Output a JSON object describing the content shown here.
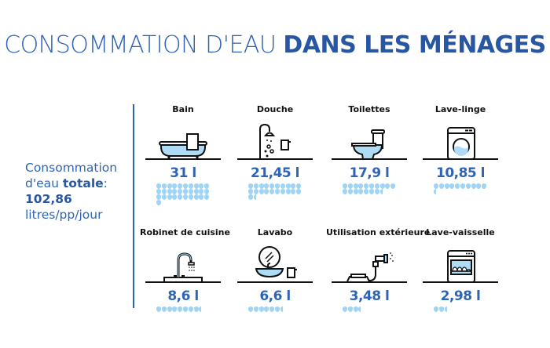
{
  "title": {
    "light": "CONSOMMATION D'EAU ",
    "bold": "DANS LES MÉNAGES"
  },
  "total": {
    "line1": "Consommation",
    "line2a": "d'eau ",
    "line2b": "totale",
    "line2c": ":",
    "value": "102,86",
    "unit": "litres/pp/jour"
  },
  "colors": {
    "accent": "#2f64b5",
    "drop": "#9fd4f5",
    "text": "#111111"
  },
  "items": [
    {
      "label": "Bain",
      "value": "31 l",
      "litres": 31,
      "icon": "bathtub-icon"
    },
    {
      "label": "Douche",
      "value": "21,45 l",
      "litres": 21.45,
      "icon": "shower-icon"
    },
    {
      "label": "Toilettes",
      "value": "17,9 l",
      "litres": 17.9,
      "icon": "toilet-icon"
    },
    {
      "label": "Lave-linge",
      "value": "10,85 l",
      "litres": 10.85,
      "icon": "washing-machine-icon"
    },
    {
      "label": "Robinet de cuisine",
      "value": "8,6 l",
      "litres": 8.6,
      "icon": "kitchen-faucet-icon"
    },
    {
      "label": "Lavabo",
      "value": "6,6 l",
      "litres": 6.6,
      "icon": "washbasin-icon"
    },
    {
      "label": "Utilisation extérieure",
      "value": "3,48 l",
      "litres": 3.48,
      "icon": "garden-hose-icon"
    },
    {
      "label": "Lave-vaisselle",
      "value": "2,98 l",
      "litres": 2.98,
      "icon": "dishwasher-icon"
    }
  ],
  "chart_data": {
    "type": "bar",
    "title": "CONSOMMATION D'EAU DANS LES MÉNAGES",
    "categories": [
      "Bain",
      "Douche",
      "Toilettes",
      "Lave-linge",
      "Robinet de cuisine",
      "Lavabo",
      "Utilisation extérieure",
      "Lave-vaisselle"
    ],
    "values": [
      31,
      21.45,
      17.9,
      10.85,
      8.6,
      6.6,
      3.48,
      2.98
    ],
    "unit": "litres/pp/jour",
    "total": 102.86,
    "xlabel": "",
    "ylabel": "litres",
    "annotation": "Consommation d'eau totale: 102,86 litres/pp/jour",
    "encoding": "pictogram: one water drop = 1 litre, 10 drops per row"
  }
}
